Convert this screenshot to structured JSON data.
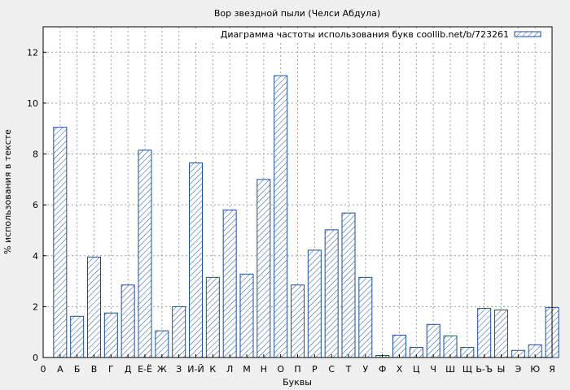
{
  "chart_data": {
    "type": "bar",
    "title": "Вор звездной пыли (Челси Абдула)",
    "xlabel": "Буквы",
    "ylabel": "% использования в тексте",
    "legend": {
      "label": "Диаграмма частоты использования букв coollib.net/b/723261",
      "position": "top-right"
    },
    "x_start_label": "0",
    "categories": [
      "А",
      "Б",
      "В",
      "Г",
      "Д",
      "Е-Ё",
      "Ж",
      "З",
      "И-Й",
      "К",
      "Л",
      "М",
      "Н",
      "О",
      "П",
      "Р",
      "С",
      "Т",
      "У",
      "Ф",
      "Х",
      "Ц",
      "Ч",
      "Ш",
      "Щ",
      "Ь-Ъ",
      "Ы",
      "Э",
      "Ю",
      "Я"
    ],
    "values": [
      9.05,
      1.62,
      3.95,
      1.75,
      2.85,
      8.15,
      1.05,
      2.0,
      7.65,
      3.15,
      5.8,
      3.28,
      7.0,
      11.08,
      2.85,
      4.22,
      5.02,
      5.68,
      3.15,
      0.08,
      0.88,
      0.4,
      1.3,
      0.85,
      0.4,
      1.93,
      1.87,
      0.28,
      0.5,
      1.97
    ],
    "ylim": [
      0,
      13
    ],
    "yticks": [
      0,
      2,
      4,
      6,
      8,
      10,
      12
    ],
    "grid": true,
    "colors": {
      "bar_stroke": "#1a4fa0",
      "hatch": "#1a4fa0",
      "bar_fill": "#ffffff",
      "plot_bg": "#ffffff",
      "page_bg": "#f0f0f0",
      "grid": "#a0a0a0"
    }
  }
}
